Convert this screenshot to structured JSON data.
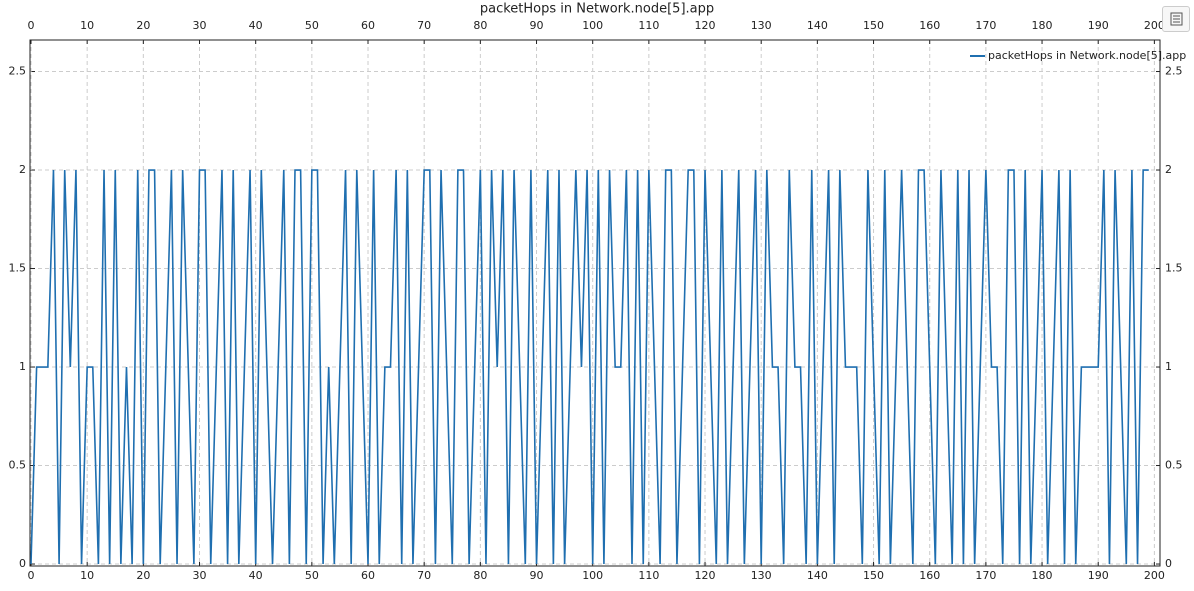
{
  "chart_data": {
    "type": "line",
    "title": "packetHops in Network.node[5].app",
    "x": [
      0,
      1,
      2,
      3,
      4,
      5,
      6,
      7,
      8,
      9,
      10,
      11,
      12,
      13,
      14,
      15,
      16,
      17,
      18,
      19,
      20,
      21,
      22,
      23,
      24,
      25,
      26,
      27,
      28,
      29,
      30,
      31,
      32,
      33,
      34,
      35,
      36,
      37,
      38,
      39,
      40,
      41,
      42,
      43,
      44,
      45,
      46,
      47,
      48,
      49,
      50,
      51,
      52,
      53,
      54,
      55,
      56,
      57,
      58,
      59,
      60,
      61,
      62,
      63,
      64,
      65,
      66,
      67,
      68,
      69,
      70,
      71,
      72,
      73,
      74,
      75,
      76,
      77,
      78,
      79,
      80,
      81,
      82,
      83,
      84,
      85,
      86,
      87,
      88,
      89,
      90,
      91,
      92,
      93,
      94,
      95,
      96,
      97,
      98,
      99,
      100,
      101,
      102,
      103,
      104,
      105,
      106,
      107,
      108,
      109,
      110,
      111,
      112,
      113,
      114,
      115,
      116,
      117,
      118,
      119,
      120,
      121,
      122,
      123,
      124,
      125,
      126,
      127,
      128,
      129,
      130,
      131,
      132,
      133,
      134,
      135,
      136,
      137,
      138,
      139,
      140,
      141,
      142,
      143,
      144,
      145,
      146,
      147,
      148,
      149,
      150,
      151,
      152,
      153,
      154,
      155,
      156,
      157,
      158,
      159,
      160,
      161,
      162,
      163,
      164,
      165,
      166,
      167,
      168,
      169,
      170,
      171,
      172,
      173,
      174,
      175,
      176,
      177,
      178,
      179,
      180,
      181,
      182,
      183,
      184,
      185,
      186,
      187,
      188,
      189,
      190,
      191,
      192,
      193,
      194,
      195,
      196,
      197,
      198,
      199
    ],
    "series": [
      {
        "name": "packetHops in Network.node[5].app",
        "color": "#1f6fb0",
        "values": [
          0,
          1,
          1,
          1,
          2,
          0,
          2,
          1,
          2,
          0,
          1,
          1,
          0,
          2,
          0,
          2,
          0,
          1,
          0,
          2,
          0,
          2,
          2,
          0,
          1,
          2,
          0,
          2,
          1,
          0,
          2,
          2,
          0,
          1,
          2,
          0,
          2,
          0,
          1,
          2,
          0,
          2,
          1,
          0,
          1,
          2,
          0,
          2,
          2,
          0,
          2,
          2,
          0,
          1,
          0,
          1,
          2,
          0,
          2,
          1,
          0,
          2,
          0,
          1,
          1,
          2,
          0,
          2,
          0,
          1,
          2,
          2,
          0,
          2,
          1,
          0,
          2,
          2,
          0,
          1,
          2,
          0,
          2,
          1,
          2,
          0,
          2,
          1,
          0,
          2,
          0,
          1,
          2,
          0,
          2,
          0,
          1,
          2,
          1,
          2,
          0,
          2,
          0,
          2,
          1,
          1,
          2,
          0,
          2,
          0,
          2,
          1,
          0,
          2,
          2,
          0,
          1,
          2,
          2,
          0,
          2,
          1,
          0,
          2,
          0,
          1,
          2,
          0,
          1,
          2,
          0,
          2,
          1,
          1,
          0,
          2,
          1,
          1,
          0,
          2,
          0,
          1,
          2,
          0,
          2,
          1,
          1,
          1,
          0,
          2,
          1,
          0,
          2,
          0,
          1,
          2,
          1,
          0,
          2,
          2,
          1,
          0,
          2,
          1,
          0,
          2,
          0,
          2,
          0,
          1,
          2,
          1,
          1,
          0,
          2,
          2,
          0,
          2,
          0,
          1,
          2,
          0,
          1,
          2,
          0,
          2,
          0,
          1,
          1,
          1,
          1,
          2,
          0,
          2,
          1,
          0,
          2,
          0,
          2,
          2
        ]
      }
    ],
    "xlim": [
      0,
      201
    ],
    "ylim": [
      -0.01,
      2.66
    ],
    "xticks": [
      0,
      10,
      20,
      30,
      40,
      50,
      60,
      70,
      80,
      90,
      100,
      110,
      120,
      130,
      140,
      150,
      160,
      170,
      180,
      190,
      200
    ],
    "yticks": [
      0,
      0.5,
      1,
      1.5,
      2,
      2.5
    ],
    "grid": true,
    "legend": "top-right"
  }
}
